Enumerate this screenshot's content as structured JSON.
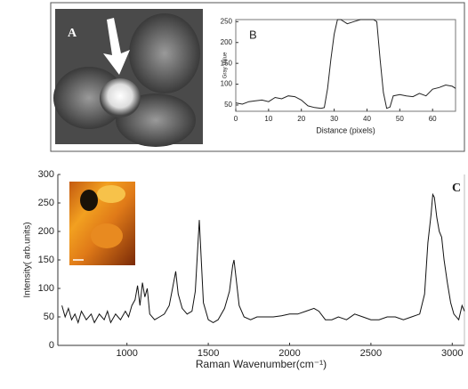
{
  "image_label": "A",
  "chart_data": [
    {
      "type": "line",
      "label": "B",
      "ylabel": "Gray Value",
      "xlabel": "Distance (pixels)",
      "color": "#222",
      "xlim": [
        0,
        67
      ],
      "ylim": [
        35,
        255
      ],
      "xticks": [
        0,
        10,
        20,
        30,
        40,
        50,
        60
      ],
      "yticks": [
        50,
        100,
        150,
        200,
        250
      ],
      "series": [
        {
          "x": [
            0,
            2,
            4,
            6,
            8,
            10,
            12,
            14,
            16,
            18,
            20,
            22,
            24,
            26,
            27,
            28,
            29,
            30,
            31,
            32,
            34,
            36,
            38,
            40,
            42,
            43,
            44,
            45,
            46,
            47,
            48,
            50,
            52,
            54,
            56,
            58,
            60,
            62,
            64,
            66,
            67
          ],
          "values": [
            55,
            52,
            58,
            60,
            62,
            58,
            68,
            65,
            72,
            70,
            62,
            48,
            44,
            42,
            44,
            90,
            160,
            220,
            255,
            255,
            245,
            250,
            255,
            255,
            255,
            250,
            160,
            80,
            42,
            45,
            72,
            75,
            72,
            70,
            78,
            72,
            88,
            92,
            98,
            95,
            90
          ]
        }
      ]
    },
    {
      "type": "line",
      "label": "C",
      "ylabel": "Intensity( arb.units)",
      "xlabel": "Raman Wavenumber(cm⁻¹)",
      "color": "#111",
      "xlim": [
        575,
        3075
      ],
      "ylim": [
        0,
        300
      ],
      "xticks": [
        1000,
        1500,
        2000,
        2500,
        3000
      ],
      "yticks": [
        0,
        50,
        100,
        150,
        200,
        250,
        300
      ],
      "series": [
        {
          "x": [
            600,
            620,
            640,
            660,
            680,
            700,
            720,
            750,
            780,
            800,
            830,
            860,
            880,
            900,
            930,
            960,
            990,
            1010,
            1030,
            1050,
            1065,
            1080,
            1095,
            1110,
            1125,
            1140,
            1170,
            1200,
            1230,
            1260,
            1280,
            1300,
            1315,
            1340,
            1370,
            1400,
            1420,
            1435,
            1445,
            1455,
            1470,
            1500,
            1530,
            1560,
            1600,
            1630,
            1650,
            1658,
            1670,
            1690,
            1720,
            1760,
            1800,
            1850,
            1900,
            1950,
            2000,
            2050,
            2100,
            2150,
            2180,
            2220,
            2260,
            2300,
            2350,
            2400,
            2450,
            2500,
            2550,
            2600,
            2650,
            2700,
            2750,
            2800,
            2830,
            2850,
            2870,
            2880,
            2890,
            2905,
            2920,
            2935,
            2950,
            2970,
            2990,
            3010,
            3040,
            3060,
            3075
          ],
          "values": [
            70,
            50,
            65,
            45,
            55,
            40,
            60,
            45,
            55,
            40,
            55,
            45,
            60,
            40,
            55,
            45,
            60,
            50,
            70,
            80,
            105,
            70,
            110,
            85,
            100,
            55,
            45,
            50,
            55,
            70,
            100,
            130,
            90,
            65,
            55,
            60,
            95,
            170,
            220,
            160,
            75,
            45,
            40,
            45,
            65,
            95,
            140,
            150,
            120,
            70,
            50,
            45,
            50,
            50,
            50,
            52,
            55,
            55,
            60,
            65,
            60,
            45,
            45,
            50,
            45,
            55,
            50,
            45,
            45,
            50,
            50,
            45,
            50,
            55,
            90,
            180,
            230,
            265,
            260,
            225,
            200,
            190,
            150,
            110,
            75,
            55,
            45,
            70,
            60
          ]
        }
      ]
    }
  ]
}
